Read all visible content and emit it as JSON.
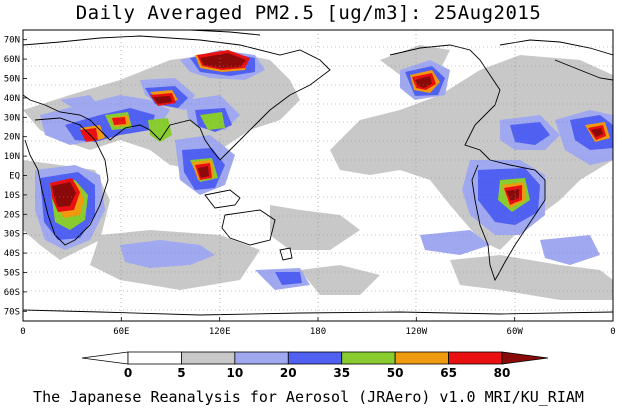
{
  "title": "Daily Averaged PM2.5 [ug/m3]: 25Aug2015",
  "footer": "The Japanese Reanalysis for Aerosol (JRAero) v1.0 MRI/KU_RIAM",
  "lat_labels": [
    "70N",
    "60N",
    "50N",
    "40N",
    "30N",
    "20N",
    "10N",
    "EQ",
    "10S",
    "20S",
    "30S",
    "40S",
    "50S",
    "60S",
    "70S"
  ],
  "lon_labels": [
    "0",
    "60E",
    "120E",
    "180",
    "120W",
    "60W",
    "0"
  ],
  "colorbar": {
    "levels": [
      "0",
      "5",
      "10",
      "20",
      "35",
      "50",
      "65",
      "80"
    ],
    "colors": [
      "#ffffff",
      "#ffffff",
      "#c8c8c8",
      "#a0a8f0",
      "#5060f0",
      "#88cc30",
      "#f09a10",
      "#e81010",
      "#8a0a0a"
    ]
  },
  "map_data": {
    "projection": "equirectangular",
    "lon_range": [
      0,
      360
    ],
    "lat_range": [
      -75,
      75
    ],
    "variable": "PM2.5",
    "units": "ug/m3",
    "date": "25Aug2015",
    "hotspots": [
      {
        "region": "Central Africa",
        "level": ">80"
      },
      {
        "region": "Siberia",
        "level": ">80"
      },
      {
        "region": "Northern China / Mongolia",
        "level": ">80"
      },
      {
        "region": "Indochina / Borneo",
        "level": ">80"
      },
      {
        "region": "Western Canada",
        "level": ">80"
      },
      {
        "region": "Amazon / Brazil",
        "level": ">80"
      },
      {
        "region": "Arabian Peninsula",
        "level": "65-80"
      },
      {
        "region": "Sahara / West Africa",
        "level": "65-80"
      },
      {
        "region": "Indo-Gangetic Plain",
        "level": "50-65"
      }
    ]
  }
}
